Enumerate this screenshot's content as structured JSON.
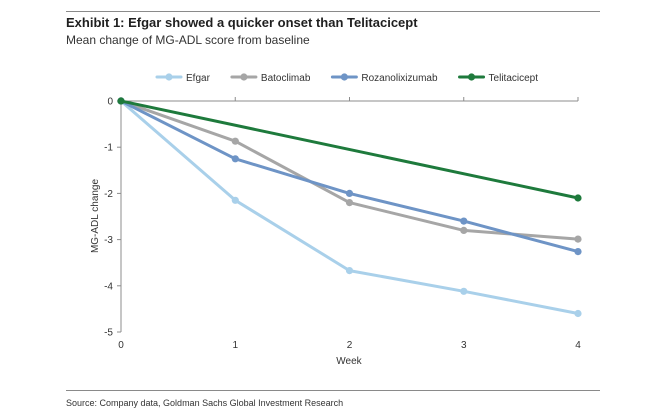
{
  "title": "Exhibit 1: Efgar showed a quicker onset than Telitacicept",
  "subtitle": "Mean change of MG-ADL score from baseline",
  "source": "Source: Company data, Goldman Sachs Global Investment Research",
  "chart_data": {
    "type": "line",
    "xlabel": "Week",
    "ylabel": "MG-ADL change",
    "x": [
      0,
      1,
      2,
      3,
      4
    ],
    "xlim": [
      0,
      4
    ],
    "ylim": [
      -5,
      0
    ],
    "xticks": [
      "0",
      "1",
      "2",
      "3",
      "4"
    ],
    "yticks": [
      "0",
      "-1",
      "-2",
      "-3",
      "-4",
      "-5"
    ],
    "grid": false,
    "legend_position": "top",
    "series": [
      {
        "name": "Efgar",
        "color": "#a9d0ea",
        "values": [
          0,
          -2.15,
          -3.67,
          -4.12,
          -4.6
        ]
      },
      {
        "name": "Batoclimab",
        "color": "#a6a6a6",
        "values": [
          0,
          -0.87,
          -2.2,
          -2.8,
          -2.99
        ]
      },
      {
        "name": "Rozanolixizumab",
        "color": "#6e94c6",
        "values": [
          0,
          -1.25,
          -2.0,
          -2.6,
          -3.26
        ]
      },
      {
        "name": "Telitacicept",
        "color": "#1e7a3c",
        "values": [
          0,
          null,
          null,
          null,
          -2.1
        ]
      }
    ]
  }
}
